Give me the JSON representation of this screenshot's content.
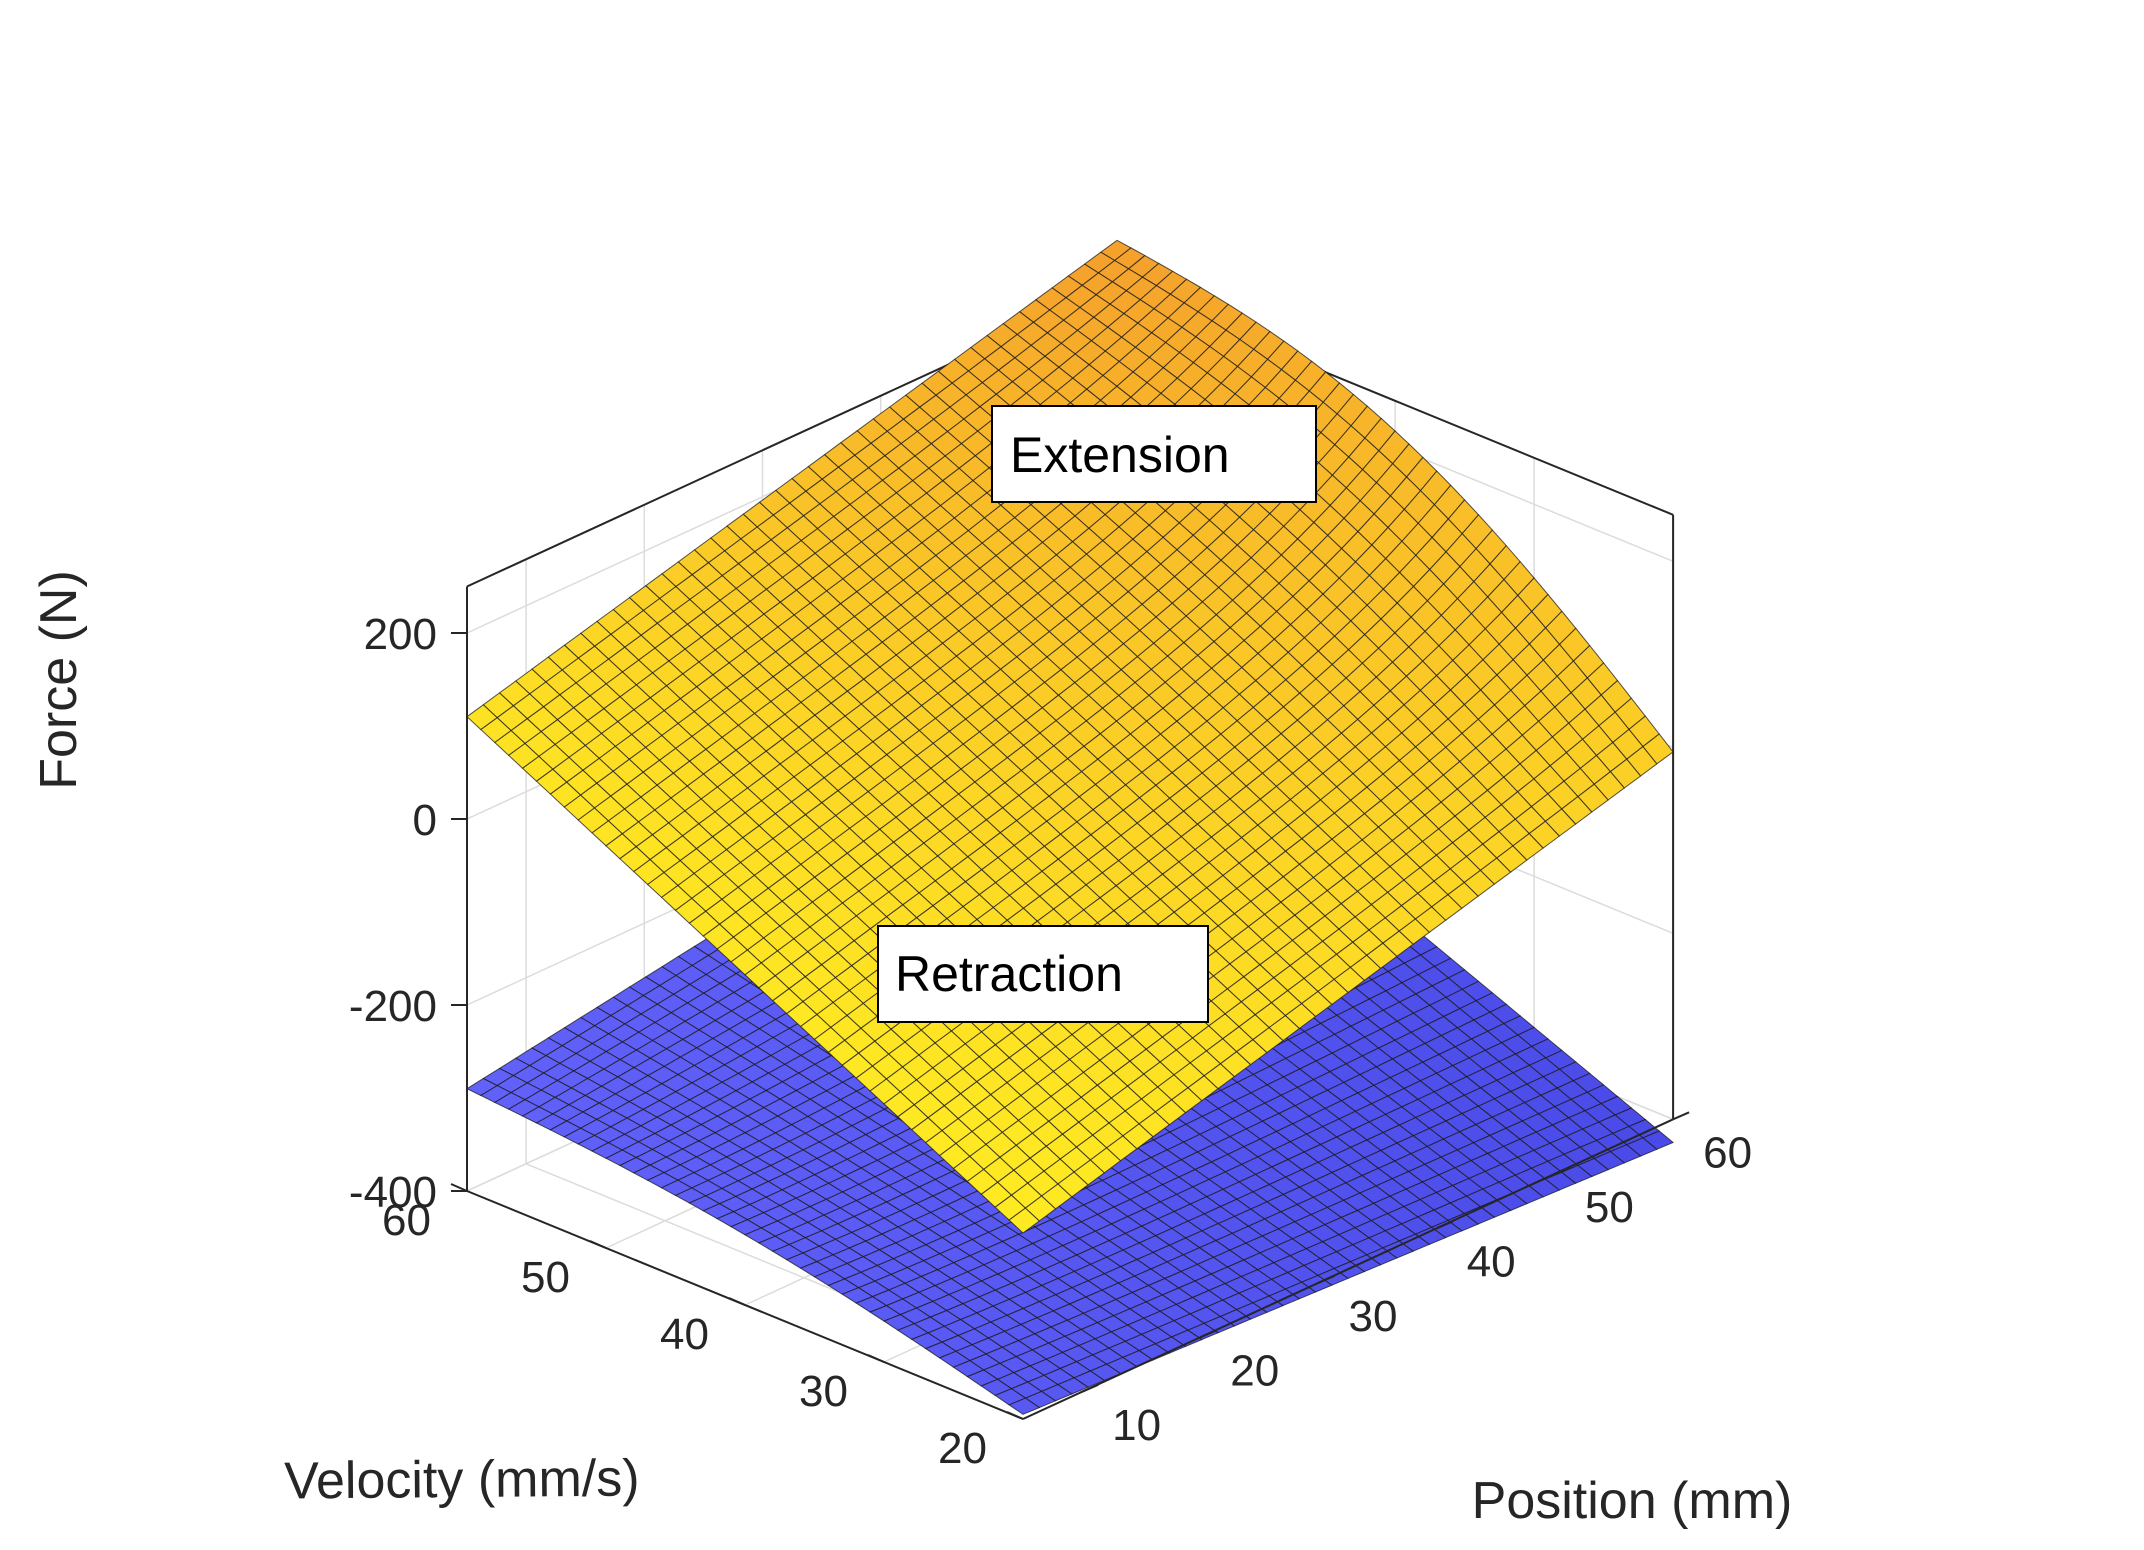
{
  "chart_data": {
    "type": "surface3d",
    "title": "",
    "xlabel": "Position (mm)",
    "ylabel": "Velocity (mm/s)",
    "zlabel": "Force (N)",
    "xlim": [
      5,
      60
    ],
    "ylim": [
      20,
      60
    ],
    "zlim": [
      -400,
      250
    ],
    "xticks": [
      10,
      20,
      30,
      40,
      50,
      60
    ],
    "xtick_labels": [
      "10",
      "20",
      "30",
      "40",
      "50",
      "60"
    ],
    "yticks": [
      20,
      30,
      40,
      50,
      60
    ],
    "ytick_labels": [
      "20",
      "30",
      "40",
      "50",
      "60"
    ],
    "zticks": [
      -400,
      -200,
      0,
      200
    ],
    "ztick_labels": [
      "-400",
      "-200",
      "0",
      "200"
    ],
    "grid": true,
    "mesh": {
      "x_count": 41,
      "y_count": 41
    },
    "series": [
      {
        "name": "Extension",
        "color_low": "#ffee22",
        "color_high": "#f5a22c",
        "corners": {
          "x5_y20": -200,
          "x60_y20": -5,
          "x5_y60": 110,
          "x60_y60": 300
        },
        "edge_x60_y20_bulge": 70
      },
      {
        "name": "Retraction",
        "color_low": "#4040e0",
        "color_high": "#6868ff",
        "corners": {
          "x5_y20": -395,
          "x60_y20": -425,
          "x5_y60": -290,
          "x60_y60": -175
        },
        "edge_x5_bulge": 18
      }
    ],
    "annotations": [
      {
        "text": "Extension",
        "series": "Extension"
      },
      {
        "text": "Retraction",
        "series": "Retraction"
      }
    ]
  }
}
